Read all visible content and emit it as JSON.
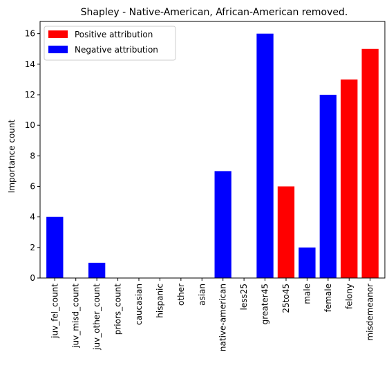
{
  "chart_data": {
    "type": "bar",
    "title": "Shapley - Native-American, African-American removed.",
    "xlabel": "",
    "ylabel": "Importance count",
    "ylim": [
      0,
      16.8
    ],
    "yticks": [
      0,
      2,
      4,
      6,
      8,
      10,
      12,
      14,
      16
    ],
    "grid": false,
    "legend_position": "top-left",
    "categories": [
      "juv_fel_count",
      "juv_misd_count",
      "juv_other_count",
      "priors_count",
      "caucasian",
      "hispanic",
      "other",
      "asian",
      "native-american",
      "less25",
      "greater45",
      "25to45",
      "male",
      "female",
      "felony",
      "misdemeanor"
    ],
    "values": [
      4,
      0,
      1,
      0,
      0,
      0,
      0,
      0,
      7,
      0,
      16,
      6,
      2,
      12,
      13,
      15
    ],
    "bar_colors": [
      "#0000ff",
      "#0000ff",
      "#0000ff",
      "#0000ff",
      "#0000ff",
      "#0000ff",
      "#0000ff",
      "#0000ff",
      "#0000ff",
      "#0000ff",
      "#0000ff",
      "#ff0000",
      "#0000ff",
      "#0000ff",
      "#ff0000",
      "#ff0000"
    ],
    "legend": [
      {
        "label": "Positive attribution",
        "color": "#ff0000"
      },
      {
        "label": "Negative attribution",
        "color": "#0000ff"
      }
    ]
  }
}
